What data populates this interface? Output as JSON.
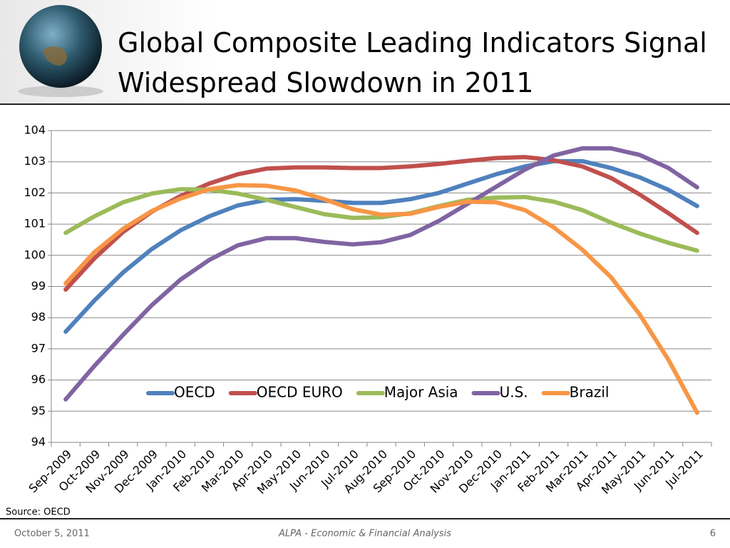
{
  "chart_data": {
    "type": "line",
    "title": "Global Composite Leading Indicators Signal Widespread Slowdown in 2011",
    "categories": [
      "Sep-2009",
      "Oct-2009",
      "Nov-2009",
      "Dec-2009",
      "Jan-2010",
      "Feb-2010",
      "Mar-2010",
      "Apr-2010",
      "May-2010",
      "Jun-2010",
      "Jul-2010",
      "Aug-2010",
      "Sep-2010",
      "Oct-2010",
      "Nov-2010",
      "Dec-2010",
      "Jan-2011",
      "Feb-2011",
      "Mar-2011",
      "Apr-2011",
      "May-2011",
      "Jun-2011",
      "Jul-2011"
    ],
    "series": [
      {
        "name": "OECD",
        "color": "#4f81bd",
        "values": [
          97.55,
          98.55,
          99.45,
          100.2,
          100.8,
          101.25,
          101.6,
          101.78,
          101.8,
          101.75,
          101.68,
          101.68,
          101.8,
          102.0,
          102.3,
          102.6,
          102.85,
          103.02,
          103.02,
          102.8,
          102.5,
          102.1,
          101.58
        ]
      },
      {
        "name": "OECD EURO",
        "color": "#c0504d",
        "values": [
          98.9,
          99.9,
          100.75,
          101.4,
          101.9,
          102.3,
          102.6,
          102.78,
          102.82,
          102.82,
          102.8,
          102.8,
          102.85,
          102.93,
          103.03,
          103.12,
          103.15,
          103.05,
          102.85,
          102.48,
          101.95,
          101.35,
          100.72
        ]
      },
      {
        "name": "Major Asia",
        "color": "#9bbb59",
        "values": [
          100.72,
          101.25,
          101.7,
          101.98,
          102.12,
          102.1,
          101.98,
          101.78,
          101.55,
          101.32,
          101.2,
          101.22,
          101.35,
          101.58,
          101.78,
          101.85,
          101.87,
          101.72,
          101.45,
          101.05,
          100.7,
          100.4,
          100.15
        ]
      },
      {
        "name": "U.S.",
        "color": "#8064a2",
        "values": [
          95.38,
          96.45,
          97.45,
          98.4,
          99.22,
          99.85,
          100.32,
          100.55,
          100.55,
          100.43,
          100.35,
          100.42,
          100.65,
          101.1,
          101.65,
          102.2,
          102.75,
          103.2,
          103.43,
          103.43,
          103.22,
          102.8,
          102.18
        ]
      },
      {
        "name": "Brazil",
        "color": "#f79646",
        "values": [
          99.1,
          100.1,
          100.85,
          101.42,
          101.82,
          102.12,
          102.25,
          102.23,
          102.08,
          101.8,
          101.48,
          101.3,
          101.33,
          101.55,
          101.72,
          101.7,
          101.45,
          100.9,
          100.18,
          99.3,
          98.1,
          96.65,
          94.95
        ]
      }
    ],
    "ylim": [
      94,
      104
    ],
    "yticks": [
      94,
      95,
      96,
      97,
      98,
      99,
      100,
      101,
      102,
      103,
      104
    ],
    "grid": true,
    "legend": "bottom",
    "source": "Source: OECD"
  },
  "footer": {
    "date": "October 5, 2011",
    "center": "ALPA - Economic & Financial Analysis",
    "page": "6"
  }
}
